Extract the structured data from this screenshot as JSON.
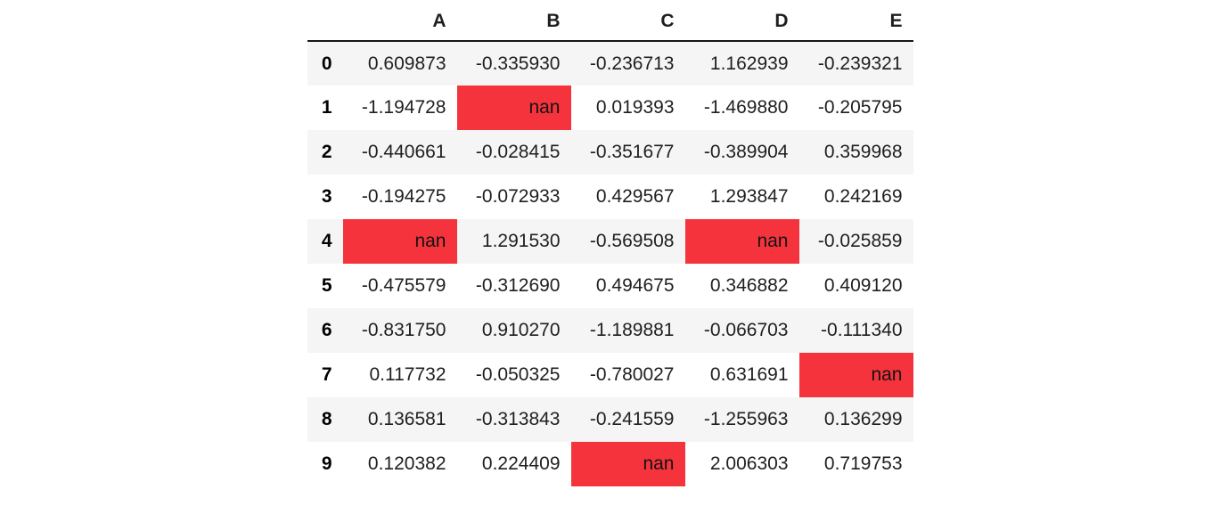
{
  "chart_data": {
    "type": "table",
    "title": "",
    "columns": [
      "A",
      "B",
      "C",
      "D",
      "E"
    ],
    "index_header": "",
    "nan_label": "nan",
    "rows": [
      {
        "index": "0",
        "values": [
          "0.609873",
          "-0.335930",
          "-0.236713",
          "1.162939",
          "-0.239321"
        ],
        "nan_cols": []
      },
      {
        "index": "1",
        "values": [
          "-1.194728",
          "nan",
          "0.019393",
          "-1.469880",
          "-0.205795"
        ],
        "nan_cols": [
          1
        ]
      },
      {
        "index": "2",
        "values": [
          "-0.440661",
          "-0.028415",
          "-0.351677",
          "-0.389904",
          "0.359968"
        ],
        "nan_cols": []
      },
      {
        "index": "3",
        "values": [
          "-0.194275",
          "-0.072933",
          "0.429567",
          "1.293847",
          "0.242169"
        ],
        "nan_cols": []
      },
      {
        "index": "4",
        "values": [
          "nan",
          "1.291530",
          "-0.569508",
          "nan",
          "-0.025859"
        ],
        "nan_cols": [
          0,
          3
        ]
      },
      {
        "index": "5",
        "values": [
          "-0.475579",
          "-0.312690",
          "0.494675",
          "0.346882",
          "0.409120"
        ],
        "nan_cols": []
      },
      {
        "index": "6",
        "values": [
          "-0.831750",
          "0.910270",
          "-1.189881",
          "-0.066703",
          "-0.111340"
        ],
        "nan_cols": []
      },
      {
        "index": "7",
        "values": [
          "0.117732",
          "-0.050325",
          "-0.780027",
          "0.631691",
          "nan"
        ],
        "nan_cols": [
          4
        ]
      },
      {
        "index": "8",
        "values": [
          "0.136581",
          "-0.313843",
          "-0.241559",
          "-1.255963",
          "0.136299"
        ],
        "nan_cols": []
      },
      {
        "index": "9",
        "values": [
          "0.120382",
          "0.224409",
          "nan",
          "2.006303",
          "0.719753"
        ],
        "nan_cols": [
          2
        ]
      }
    ],
    "highlighted_nan_cells": [
      {
        "row": 1,
        "col": "B"
      },
      {
        "row": 4,
        "col": "A"
      },
      {
        "row": 4,
        "col": "D"
      },
      {
        "row": 7,
        "col": "E"
      },
      {
        "row": 9,
        "col": "C"
      }
    ],
    "colors": {
      "nan_highlight": "#f5333c",
      "row_stripe": "#f5f5f5",
      "text": "#1f1f1f",
      "header_border": "#161616",
      "background": "#ffffff"
    },
    "layout": {
      "striped_rows": "even-indexed (0,2,4,6,8)",
      "alignment": "right",
      "header_border": "2px solid black",
      "grid": false
    }
  }
}
